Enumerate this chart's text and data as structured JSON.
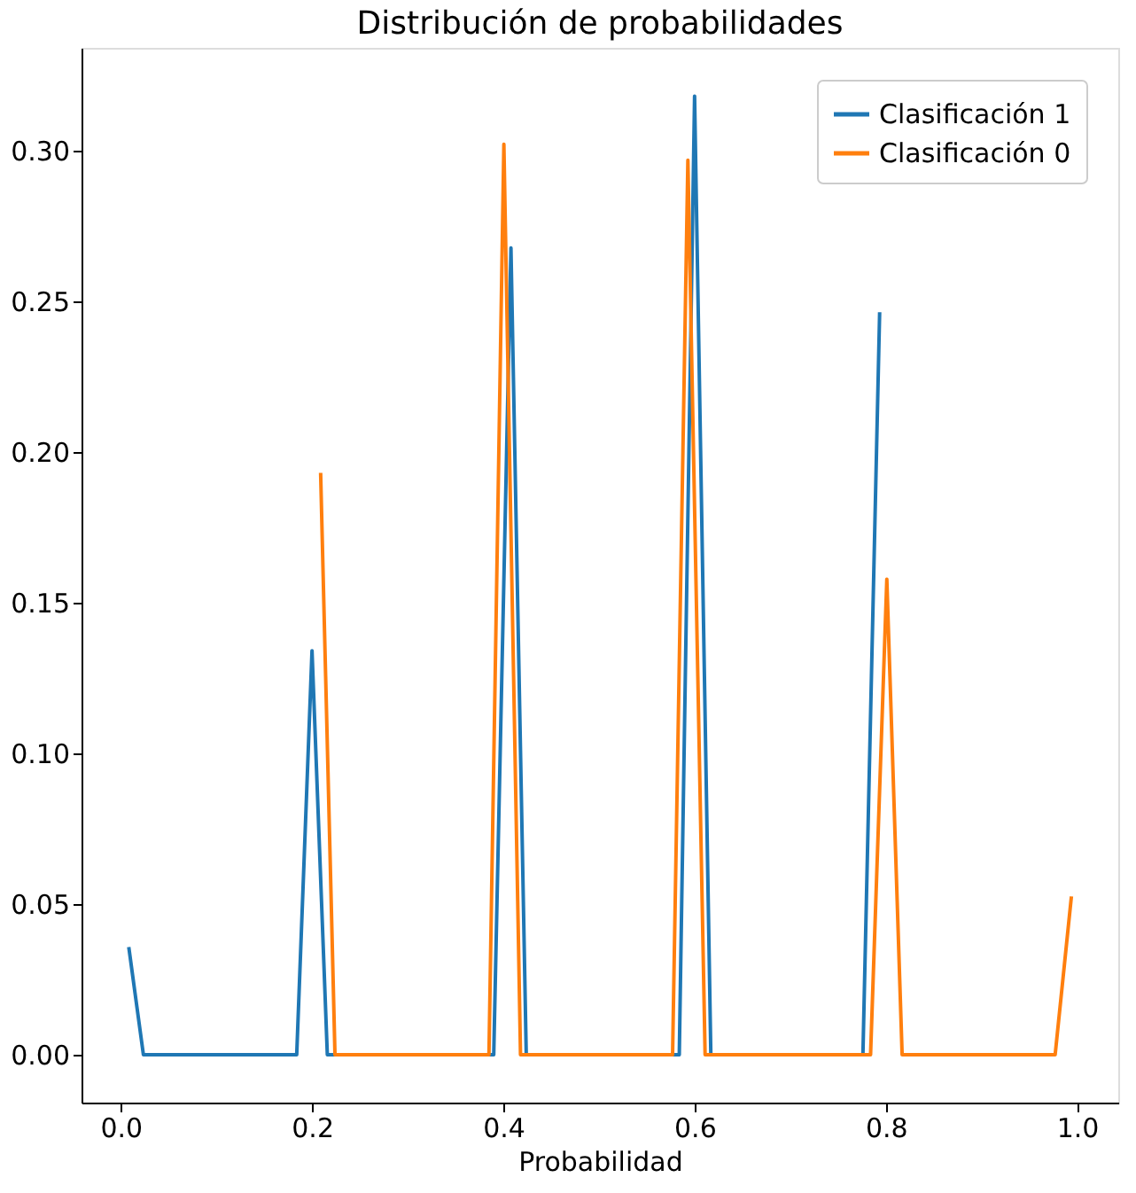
{
  "chart_data": {
    "type": "line",
    "title": "Distribución de probabilidades",
    "xlabel": "Probabilidad",
    "xlim": [
      -0.041,
      1.043
    ],
    "ylim": [
      -0.0159,
      0.334
    ],
    "xticks": [
      {
        "value": 0,
        "label": "0.0"
      },
      {
        "value": 0.2,
        "label": "0.2"
      },
      {
        "value": 0.4,
        "label": "0.4"
      },
      {
        "value": 0.6,
        "label": "0.6"
      },
      {
        "value": 0.8,
        "label": "0.8"
      },
      {
        "value": 1,
        "label": "1.0"
      }
    ],
    "yticks": [
      {
        "value": 0,
        "label": "0.00"
      },
      {
        "value": 0.05,
        "label": "0.05"
      },
      {
        "value": 0.1,
        "label": "0.10"
      },
      {
        "value": 0.15,
        "label": "0.15"
      },
      {
        "value": 0.2,
        "label": "0.20"
      },
      {
        "value": 0.25,
        "label": "0.25"
      },
      {
        "value": 0.3,
        "label": "0.30"
      }
    ],
    "grid": false,
    "legend": "top right",
    "marker": "none",
    "line_style": "solid",
    "series": [
      {
        "name": "Clasificación 1",
        "color": "#1f77b4",
        "x": [
          0.0084,
          0.0237,
          0.184,
          0.2,
          0.216,
          0.39,
          0.408,
          0.424,
          0.584,
          0.6,
          0.617,
          0.776,
          0.7935
        ],
        "values": [
          0.0357,
          0,
          0,
          0.134,
          0,
          0,
          0.2676,
          0,
          0,
          0.318,
          0,
          0,
          0.2463
        ]
      },
      {
        "name": "Clasificación 0",
        "color": "#ff7f0e",
        "x": [
          0.209,
          0.224,
          0.385,
          0.4006,
          0.418,
          0.577,
          0.593,
          0.611,
          0.784,
          0.801,
          0.817,
          0.977,
          0.994
        ],
        "values": [
          0.193,
          0,
          0,
          0.302,
          0,
          0,
          0.2967,
          0,
          0,
          0.1577,
          0,
          0,
          0.0525
        ]
      }
    ]
  }
}
